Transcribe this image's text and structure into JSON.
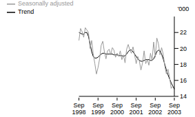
{
  "chart_data": {
    "type": "line",
    "y_label": "'000",
    "categories": [
      "Sep 1998",
      null,
      null,
      null,
      null,
      null,
      null,
      null,
      null,
      null,
      null,
      null,
      "Sep 1999",
      null,
      null,
      null,
      null,
      null,
      null,
      null,
      null,
      null,
      null,
      null,
      "Sep 2000",
      null,
      null,
      null,
      null,
      null,
      null,
      null,
      null,
      null,
      null,
      null,
      "Sep 2001",
      null,
      null,
      null,
      null,
      null,
      null,
      null,
      null,
      null,
      null,
      null,
      "Sep 2002",
      null,
      null,
      null,
      null,
      null,
      null,
      null,
      null,
      null,
      null,
      null,
      "Sep 2003"
    ],
    "series": [
      {
        "name": "Trend",
        "color": "#000000",
        "values": [
          22.0,
          21.9,
          21.8,
          21.8,
          22.0,
          22.0,
          21.5,
          20.6,
          19.6,
          19.0,
          18.8,
          18.8,
          18.9,
          19.1,
          19.3,
          19.4,
          19.4,
          19.3,
          19.3,
          19.3,
          19.3,
          19.3,
          19.2,
          19.2,
          19.2,
          19.1,
          19.1,
          19.1,
          19.0,
          19.1,
          19.3,
          19.6,
          19.8,
          19.8,
          19.6,
          19.3,
          19.0,
          18.7,
          18.5,
          18.4,
          18.4,
          18.5,
          18.6,
          18.6,
          18.6,
          18.5,
          18.5,
          18.7,
          19.1,
          19.6,
          19.8,
          19.7,
          19.3,
          18.7,
          18.0,
          17.3,
          16.7,
          16.2,
          15.7,
          15.3,
          14.9
        ]
      },
      {
        "name": "Seasonally adjusted",
        "color": "#999999",
        "values": [
          21.0,
          22.5,
          22.1,
          21.4,
          22.6,
          22.3,
          22.0,
          20.0,
          21.0,
          19.3,
          18.1,
          16.8,
          17.6,
          18.7,
          20.4,
          20.9,
          19.6,
          18.7,
          19.7,
          19.9,
          19.2,
          20.1,
          19.8,
          18.9,
          19.4,
          19.0,
          19.7,
          18.6,
          19.2,
          18.2,
          19.9,
          20.5,
          19.8,
          19.4,
          20.2,
          19.2,
          18.1,
          19.0,
          18.4,
          17.3,
          18.2,
          19.7,
          18.1,
          18.6,
          17.9,
          19.4,
          18.5,
          20.8,
          18.9,
          21.3,
          20.6,
          19.2,
          20.1,
          19.3,
          17.8,
          16.8,
          17.4,
          16.4,
          15.0,
          15.3,
          15.1
        ]
      }
    ],
    "ylim": [
      14,
      24
    ],
    "yticks": [
      14,
      16,
      18,
      20,
      22
    ],
    "grid": false,
    "legend": "top-left"
  }
}
